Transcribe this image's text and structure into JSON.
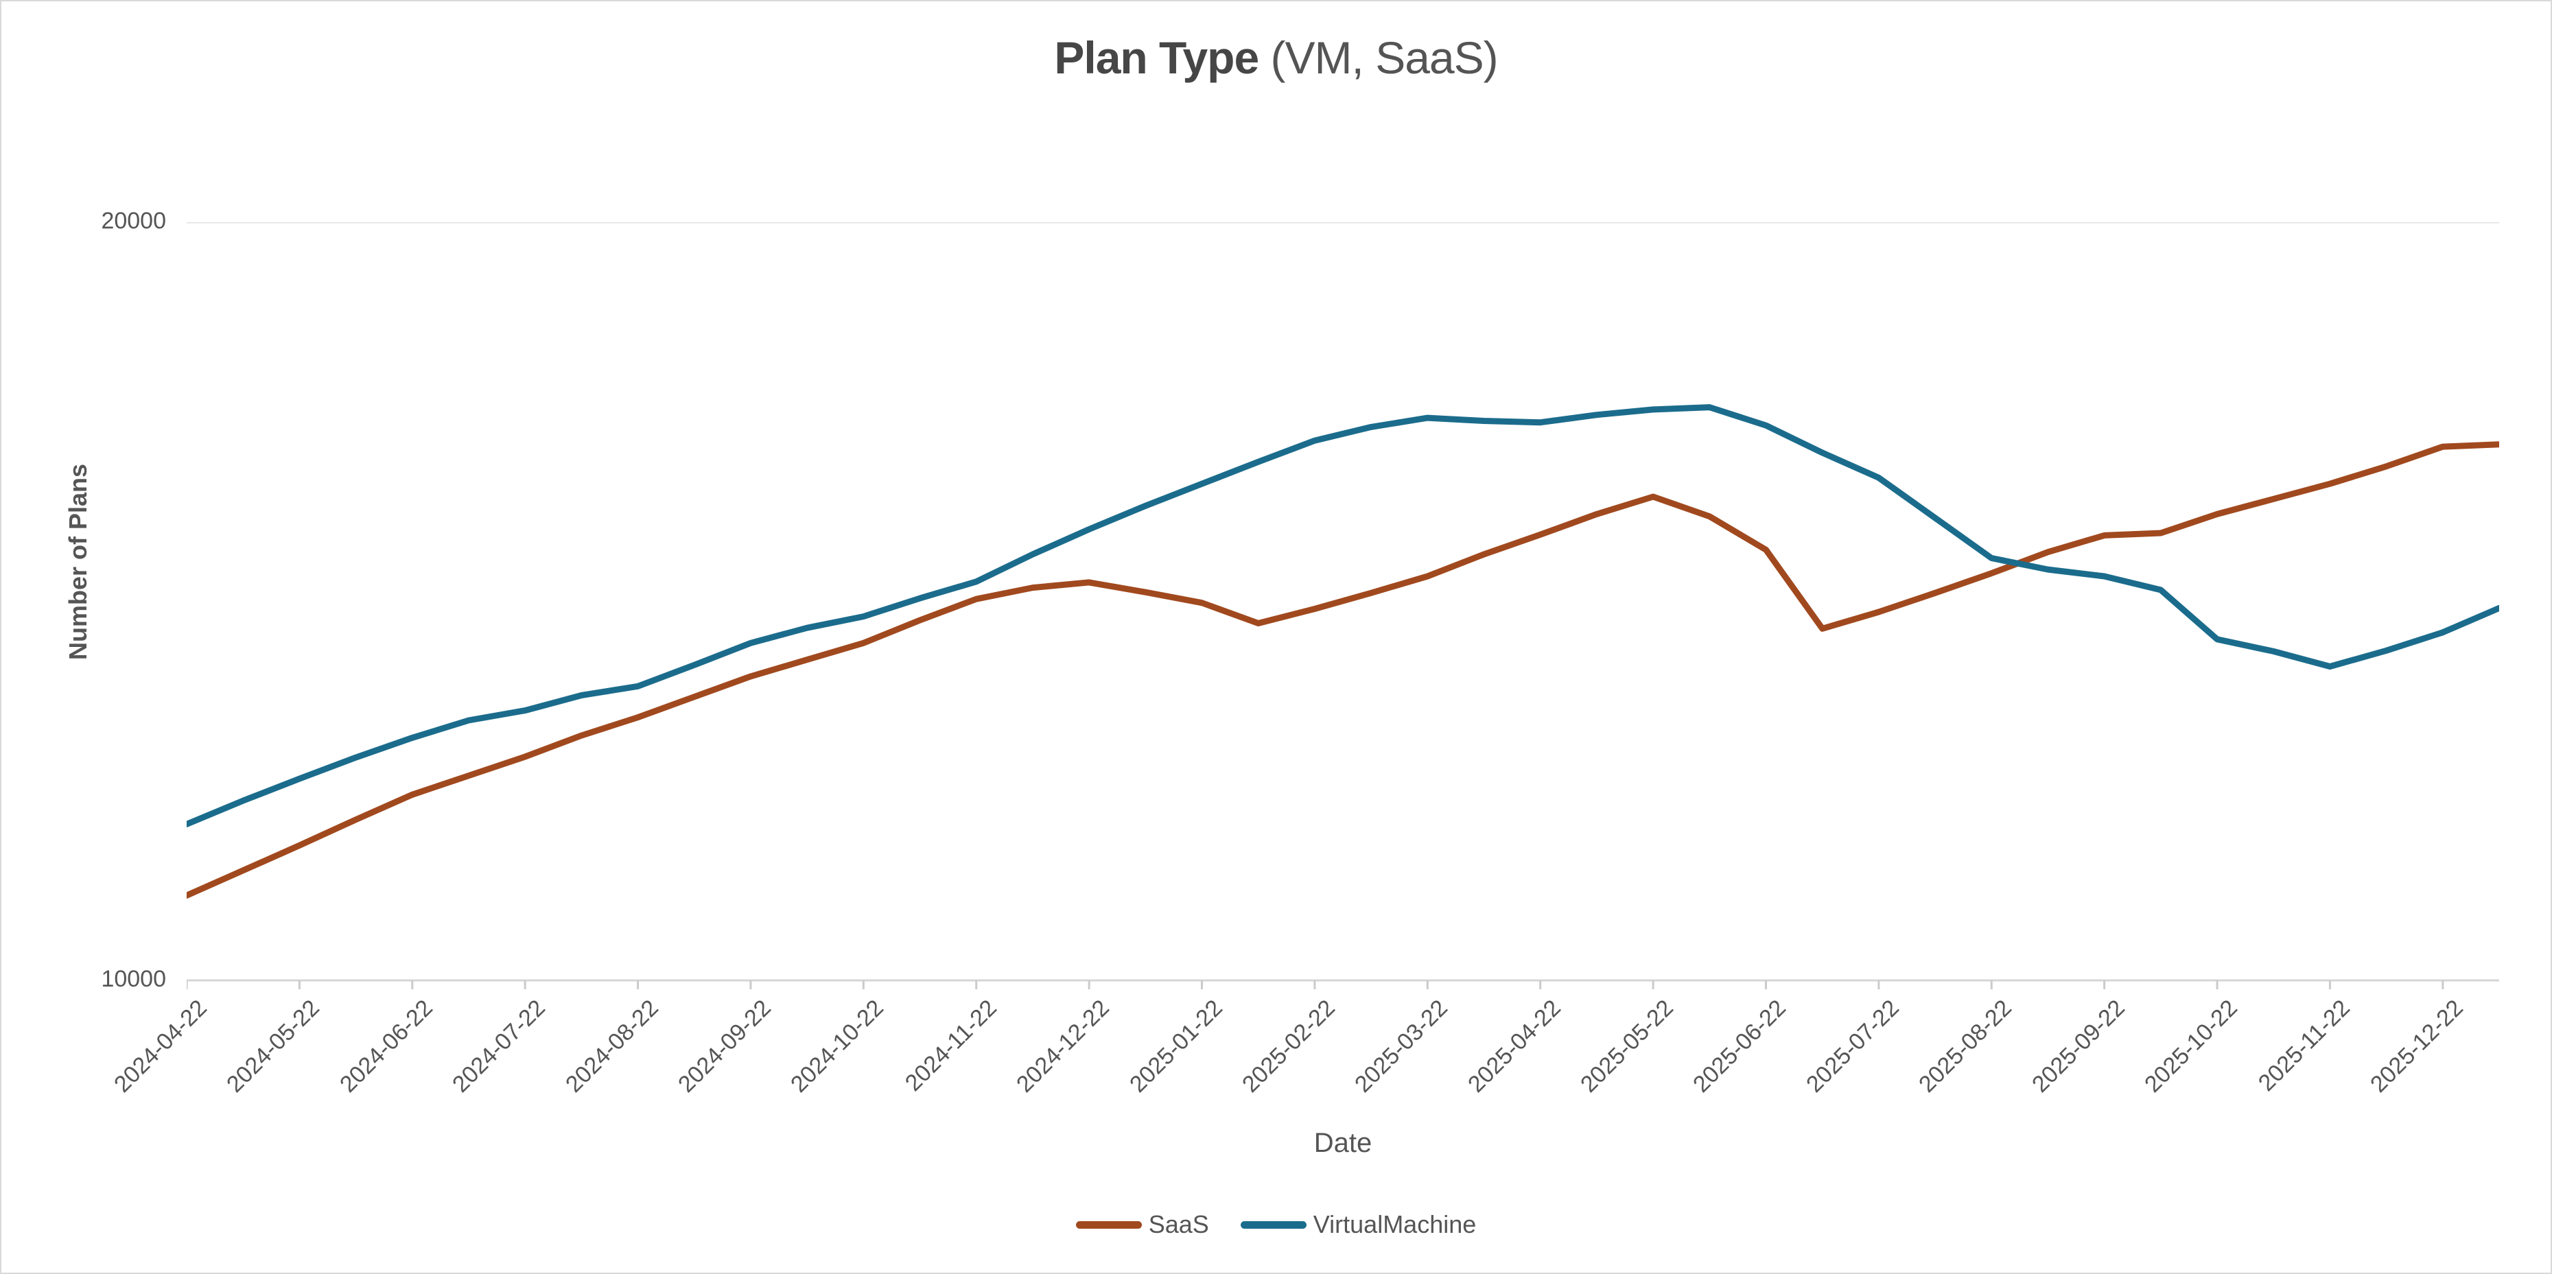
{
  "title": {
    "main": "Plan Type",
    "suffix": " (VM, SaaS)"
  },
  "axes": {
    "xlabel": "Date",
    "ylabel": "Number of Plans"
  },
  "colors": {
    "saas": "#A1491E",
    "virtual_machine": "#1B6C8C",
    "gridline": "#E0E0E0",
    "axis_line": "#D6D6D6",
    "tick_mark": "#CBCBCB",
    "text": "#555555"
  },
  "chart_data": {
    "type": "line",
    "title": "Plan Type (VM, SaaS)",
    "xlabel": "Date",
    "ylabel": "Number of Plans",
    "ylim": [
      10000,
      20000
    ],
    "y_ticks": [
      10000,
      20000
    ],
    "grid": "horizontal-top-only",
    "legend_position": "bottom-center",
    "x_tick_labels": [
      "2024-04-22",
      "2024-05-22",
      "2024-06-22",
      "2024-07-22",
      "2024-08-22",
      "2024-09-22",
      "2024-10-22",
      "2024-11-22",
      "2024-12-22",
      "2025-01-22",
      "2025-02-22",
      "2025-03-22",
      "2025-04-22",
      "2025-05-22",
      "2025-06-22",
      "2025-07-22",
      "2025-08-22",
      "2025-09-22",
      "2025-10-22",
      "2025-11-22",
      "2025-12-22"
    ],
    "points_per_tick_interval": 2,
    "sampling_note": "values sampled at each monthly tick and midpoints; final extra point extends one half-step past last tick",
    "series": [
      {
        "name": "SaaS",
        "color": "#A1491E",
        "values": [
          11120,
          11450,
          11780,
          12120,
          12450,
          12700,
          12950,
          13230,
          13470,
          13740,
          14010,
          14230,
          14450,
          14750,
          15030,
          15180,
          15250,
          15120,
          14980,
          14710,
          14900,
          15110,
          15330,
          15620,
          15880,
          16150,
          16380,
          16120,
          15680,
          14640,
          14860,
          15110,
          15370,
          15650,
          15870,
          15900,
          16150,
          16350,
          16550,
          16780,
          17040,
          17070
        ]
      },
      {
        "name": "VirtualMachine",
        "color": "#1B6C8C",
        "values": [
          12060,
          12370,
          12660,
          12940,
          13200,
          13430,
          13560,
          13760,
          13880,
          14160,
          14450,
          14650,
          14800,
          15040,
          15260,
          15620,
          15950,
          16260,
          16550,
          16840,
          17120,
          17300,
          17420,
          17380,
          17360,
          17460,
          17530,
          17560,
          17320,
          16960,
          16630,
          16100,
          15570,
          15420,
          15330,
          15150,
          14500,
          14340,
          14140,
          14350,
          14590,
          14910
        ]
      }
    ]
  }
}
